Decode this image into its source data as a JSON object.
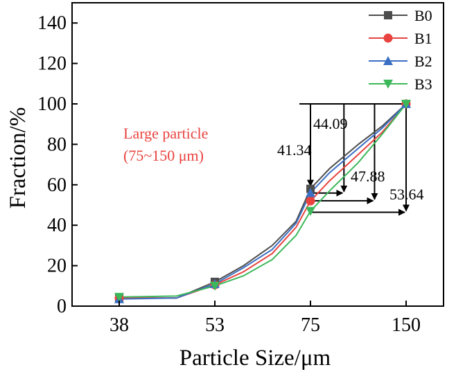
{
  "chart_data": {
    "type": "line",
    "xlabel": "Particle Size/μm",
    "ylabel": "Fraction/%",
    "categories": [
      "38",
      "53",
      "75",
      "150"
    ],
    "ylim": [
      0,
      150
    ],
    "yticks": [
      0,
      20,
      40,
      60,
      80,
      100,
      120,
      140
    ],
    "legend_position": "top-right",
    "series": [
      {
        "name": "B0",
        "color": "#4d4d4d",
        "marker": "square",
        "points": [
          [
            0,
            4
          ],
          [
            0.6,
            4
          ],
          [
            1,
            12
          ],
          [
            1.3,
            20
          ],
          [
            1.6,
            30
          ],
          [
            1.85,
            42
          ],
          [
            2,
            58
          ],
          [
            2.2,
            68
          ],
          [
            2.5,
            80
          ],
          [
            2.75,
            89
          ],
          [
            3,
            100
          ]
        ]
      },
      {
        "name": "B1",
        "color": "#e8433f",
        "marker": "circle",
        "points": [
          [
            0,
            4
          ],
          [
            0.6,
            4
          ],
          [
            1,
            10.5
          ],
          [
            1.3,
            17
          ],
          [
            1.6,
            26
          ],
          [
            1.85,
            39
          ],
          [
            2,
            52
          ],
          [
            2.2,
            62
          ],
          [
            2.5,
            75
          ],
          [
            2.75,
            86
          ],
          [
            3,
            100
          ]
        ]
      },
      {
        "name": "B2",
        "color": "#3b6fc4",
        "marker": "triangle-up",
        "points": [
          [
            0,
            3.5
          ],
          [
            0.6,
            4
          ],
          [
            1,
            11
          ],
          [
            1.3,
            19
          ],
          [
            1.6,
            28
          ],
          [
            1.85,
            41
          ],
          [
            2,
            56
          ],
          [
            2.2,
            66
          ],
          [
            2.5,
            78
          ],
          [
            2.75,
            88
          ],
          [
            3,
            100
          ]
        ]
      },
      {
        "name": "B3",
        "color": "#3cb85a",
        "marker": "triangle-down",
        "points": [
          [
            0,
            4.5
          ],
          [
            0.6,
            5
          ],
          [
            1,
            10
          ],
          [
            1.3,
            15
          ],
          [
            1.6,
            23
          ],
          [
            1.85,
            35
          ],
          [
            2,
            47
          ],
          [
            2.2,
            57
          ],
          [
            2.5,
            71
          ],
          [
            2.75,
            85
          ],
          [
            3,
            100
          ]
        ]
      }
    ],
    "annotations": [
      {
        "text": "41.34",
        "x": 2,
        "from": 100,
        "to": 58.7
      },
      {
        "text": "44.09",
        "x": 2.35,
        "from": 100,
        "to": 55.9
      },
      {
        "text": "47.88",
        "x": 2.67,
        "from": 100,
        "to": 52.1
      },
      {
        "text": "53.64",
        "x": 3,
        "from": 100,
        "to": 46.4
      }
    ],
    "note_lines": [
      "Large particle",
      "(75~150 μm)"
    ],
    "note_color": "#e8433f"
  }
}
